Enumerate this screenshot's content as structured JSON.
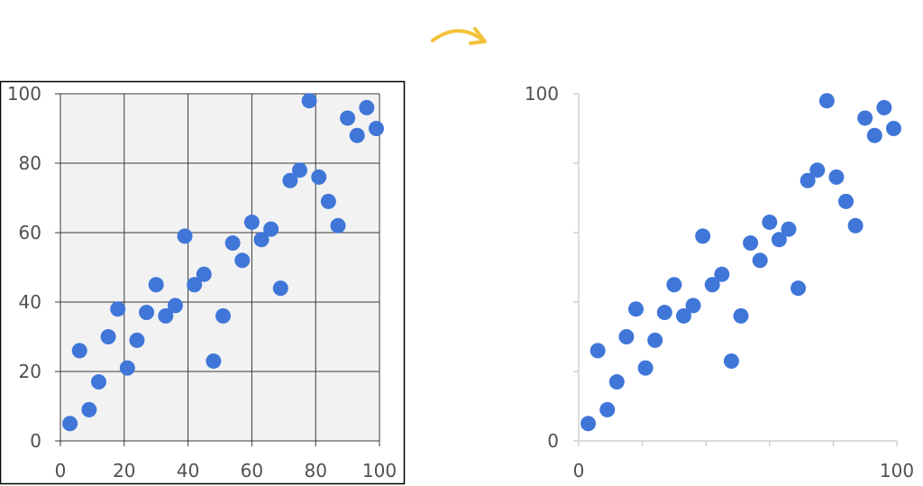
{
  "colors": {
    "point": "#3f76d8",
    "arrow": "#f2c13a",
    "plot_bg": "#f2f2f2",
    "grid": "#3a3a3a",
    "axis_light": "#c8c8c8",
    "tick_text": "#505050"
  },
  "arrow_icon": "curved-arrow-right-icon",
  "chart_data": [
    {
      "type": "scatter",
      "style": "gridded",
      "grid": true,
      "title": "",
      "xlabel": "",
      "ylabel": "",
      "xlim": [
        0,
        100
      ],
      "ylim": [
        0,
        100
      ],
      "x_ticks": [
        "0",
        "20",
        "40",
        "60",
        "80",
        "100"
      ],
      "y_ticks": [
        "0",
        "20",
        "40",
        "60",
        "80",
        "100"
      ],
      "series": [
        {
          "points": [
            [
              3,
              5
            ],
            [
              6,
              26
            ],
            [
              9,
              9
            ],
            [
              12,
              17
            ],
            [
              15,
              30
            ],
            [
              18,
              38
            ],
            [
              21,
              21
            ],
            [
              24,
              29
            ],
            [
              27,
              37
            ],
            [
              30,
              45
            ],
            [
              33,
              36
            ],
            [
              36,
              39
            ],
            [
              39,
              59
            ],
            [
              42,
              45
            ],
            [
              45,
              48
            ],
            [
              48,
              23
            ],
            [
              51,
              36
            ],
            [
              54,
              57
            ],
            [
              57,
              52
            ],
            [
              60,
              63
            ],
            [
              63,
              58
            ],
            [
              66,
              61
            ],
            [
              69,
              44
            ],
            [
              72,
              75
            ],
            [
              75,
              78
            ],
            [
              78,
              98
            ],
            [
              81,
              76
            ],
            [
              84,
              69
            ],
            [
              87,
              62
            ],
            [
              90,
              93
            ],
            [
              93,
              88
            ],
            [
              96,
              96
            ],
            [
              99,
              90
            ]
          ]
        }
      ]
    },
    {
      "type": "scatter",
      "style": "minimal",
      "grid": false,
      "title": "",
      "xlabel": "",
      "ylabel": "",
      "xlim": [
        0,
        100
      ],
      "ylim": [
        0,
        100
      ],
      "x_ticks": [
        "0",
        "100"
      ],
      "y_ticks": [
        "0",
        "100"
      ],
      "series": [
        {
          "points": [
            [
              3,
              5
            ],
            [
              6,
              26
            ],
            [
              9,
              9
            ],
            [
              12,
              17
            ],
            [
              15,
              30
            ],
            [
              18,
              38
            ],
            [
              21,
              21
            ],
            [
              24,
              29
            ],
            [
              27,
              37
            ],
            [
              30,
              45
            ],
            [
              33,
              36
            ],
            [
              36,
              39
            ],
            [
              39,
              59
            ],
            [
              42,
              45
            ],
            [
              45,
              48
            ],
            [
              48,
              23
            ],
            [
              51,
              36
            ],
            [
              54,
              57
            ],
            [
              57,
              52
            ],
            [
              60,
              63
            ],
            [
              63,
              58
            ],
            [
              66,
              61
            ],
            [
              69,
              44
            ],
            [
              72,
              75
            ],
            [
              75,
              78
            ],
            [
              78,
              98
            ],
            [
              81,
              76
            ],
            [
              84,
              69
            ],
            [
              87,
              62
            ],
            [
              90,
              93
            ],
            [
              93,
              88
            ],
            [
              96,
              96
            ],
            [
              99,
              90
            ]
          ]
        }
      ]
    }
  ]
}
